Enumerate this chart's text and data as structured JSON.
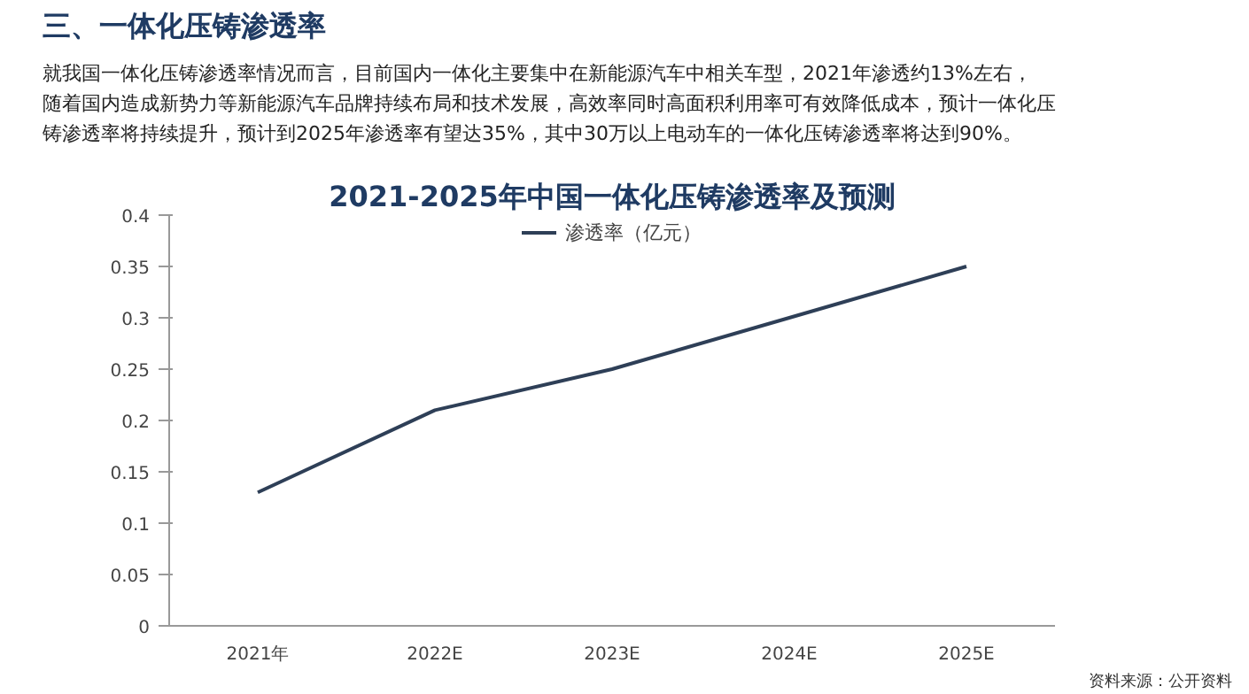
{
  "chart_data": {
    "type": "line",
    "title": "2021-2025年中国一体化压铸渗透率及预测",
    "subtitle": "三、一体化压铸渗透率",
    "annotations": [
      "就我国一体化压铸渗透率情况而言，目前国内一体化主要集中在新能源汽车中相关车型，2021年渗透约13%左右，",
      "随着国内造成新势力等新能源汽车品牌持续布局和技术发展，高效率同时高面积利用率可有效降低成本，预计一体化压",
      "铸渗透率将持续提升，预计到2025年渗透率有望达35%，其中30万以上电动车的一体化压铸渗透率将达到90%。",
      "资料来源：公开资料"
    ],
    "categories": [
      "2021年",
      "2022E",
      "2023E",
      "2024E",
      "2025E"
    ],
    "series": [
      {
        "name": "渗透率（亿元）",
        "color": "#2e3f57",
        "values": [
          0.13,
          0.21,
          0.25,
          0.3,
          0.35
        ]
      }
    ],
    "ylim": [
      0,
      0.4
    ],
    "yticks": [
      0,
      0.05,
      0.1,
      0.15,
      0.2,
      0.25,
      0.3,
      0.35,
      0.4
    ],
    "grid": false,
    "legend": "top",
    "marker": "none",
    "line_style": "solid"
  }
}
